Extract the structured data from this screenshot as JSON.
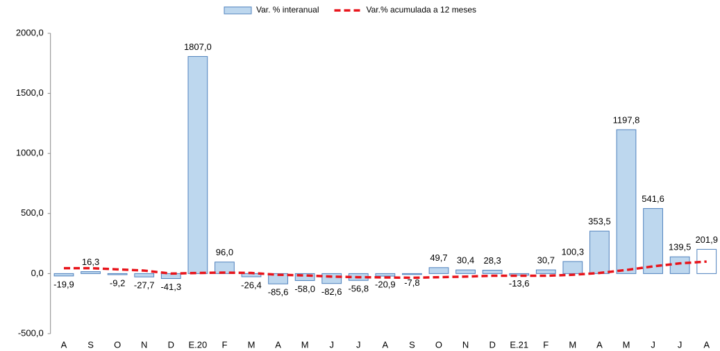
{
  "chart_data": {
    "type": "bar",
    "categories": [
      "A",
      "S",
      "O",
      "N",
      "D",
      "E.20",
      "F",
      "M",
      "A",
      "M",
      "J",
      "J",
      "A",
      "S",
      "O",
      "N",
      "D",
      "E.21",
      "F",
      "M",
      "A",
      "M",
      "J",
      "J",
      "A"
    ],
    "series": [
      {
        "name": "Var. % interanual",
        "type": "bar",
        "color": "#bdd7ee",
        "edge_color": "#4f81bd",
        "colors": [
          "#bdd7ee",
          "#bdd7ee",
          "#bdd7ee",
          "#bdd7ee",
          "#bdd7ee",
          "#bdd7ee",
          "#bdd7ee",
          "#bdd7ee",
          "#bdd7ee",
          "#bdd7ee",
          "#bdd7ee",
          "#bdd7ee",
          "#bdd7ee",
          "#bdd7ee",
          "#bdd7ee",
          "#bdd7ee",
          "#bdd7ee",
          "#bdd7ee",
          "#bdd7ee",
          "#bdd7ee",
          "#bdd7ee",
          "#bdd7ee",
          "#bdd7ee",
          "#bdd7ee",
          "#ffffff"
        ],
        "values": [
          -19.9,
          16.3,
          -9.2,
          -27.7,
          -41.3,
          1807.0,
          96.0,
          -26.4,
          -85.6,
          -58.0,
          -82.6,
          -56.8,
          -20.9,
          -7.8,
          49.7,
          30.4,
          28.3,
          -13.6,
          30.7,
          100.3,
          353.5,
          1197.8,
          541.6,
          139.5,
          201.9
        ],
        "value_labels": [
          "-19,9",
          "16,3",
          "-9,2",
          "-27,7",
          "-41,3",
          "1807,0",
          "96,0",
          "-26,4",
          "-85,6",
          "-58,0",
          "-82,6",
          "-56,8",
          "-20,9",
          "-7,8",
          "49,7",
          "30,4",
          "28,3",
          "-13,6",
          "30,7",
          "100,3",
          "353,5",
          "1197,8",
          "541,6",
          "139,5",
          "201,9"
        ]
      },
      {
        "name": "Var.% acumulada a 12 meses",
        "type": "line",
        "color": "#e8141b",
        "values": [
          45,
          45,
          35,
          25,
          0,
          5,
          8,
          5,
          -10,
          -15,
          -25,
          -30,
          -32,
          -35,
          -30,
          -25,
          -18,
          -18,
          -18,
          -10,
          5,
          30,
          60,
          85,
          100
        ]
      }
    ],
    "ylim": [
      -500,
      2000
    ],
    "yticks": [
      {
        "value": -500,
        "label": "-500,0"
      },
      {
        "value": 0,
        "label": "0,0"
      },
      {
        "value": 500,
        "label": "500,0"
      },
      {
        "value": 1000,
        "label": "1000,0"
      },
      {
        "value": 1500,
        "label": "1500,0"
      },
      {
        "value": 2000,
        "label": "2000,0"
      }
    ],
    "grid": false
  }
}
